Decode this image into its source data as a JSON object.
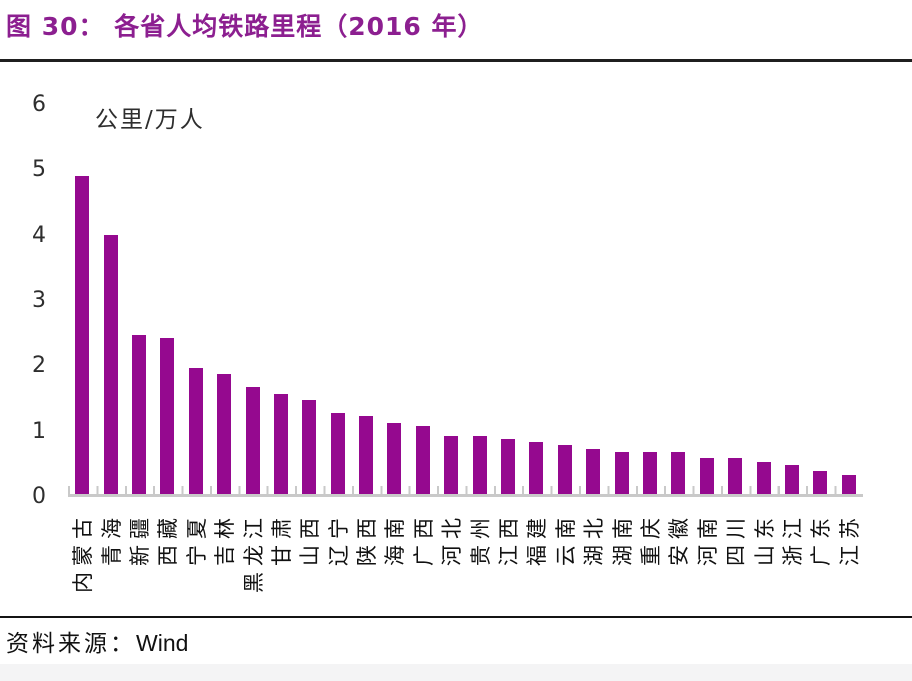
{
  "figure": {
    "title": "图 30： 各省人均铁路里程（2016 年）",
    "source_label": "资料来源：",
    "source_value": "Wind"
  },
  "chart_data": {
    "type": "bar",
    "title": "各省人均铁路里程（2016 年）",
    "unit_label": "公里/万人",
    "categories": [
      "内蒙古",
      "青海",
      "新疆",
      "西藏",
      "宁夏",
      "吉林",
      "黑龙江",
      "甘肃",
      "山西",
      "辽宁",
      "陕西",
      "海南",
      "广西",
      "河北",
      "贵州",
      "江西",
      "福建",
      "云南",
      "湖北",
      "湖南",
      "重庆",
      "安徽",
      "河南",
      "四川",
      "山东",
      "浙江",
      "广东",
      "江苏"
    ],
    "values": [
      4.9,
      4.0,
      2.45,
      2.4,
      1.95,
      1.85,
      1.65,
      1.55,
      1.45,
      1.25,
      1.2,
      1.1,
      1.05,
      0.9,
      0.9,
      0.85,
      0.8,
      0.75,
      0.7,
      0.65,
      0.65,
      0.65,
      0.55,
      0.55,
      0.5,
      0.45,
      0.35,
      0.3
    ],
    "xlabel": "",
    "ylabel": "公里/万人",
    "ylim": [
      0,
      6
    ],
    "yticks": [
      0,
      1,
      2,
      3,
      4,
      5,
      6
    ],
    "grid": false,
    "legend_position": "none",
    "bar_color": "#95098F",
    "axis_color": "#C9C9C9",
    "title_color": "#8C1F90"
  }
}
